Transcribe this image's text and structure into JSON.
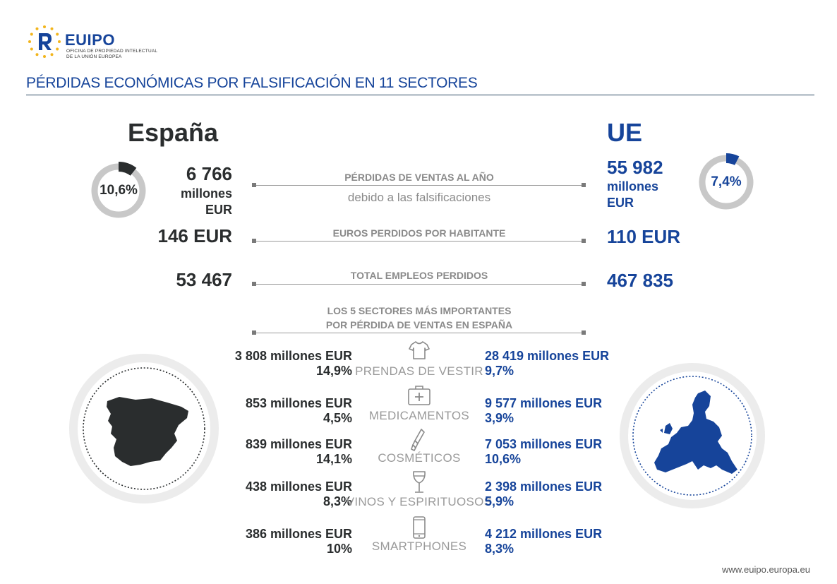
{
  "logo": {
    "name": "EUIPO",
    "subtitle_line1": "OFICINA DE PROPIEDAD INTELECTUAL",
    "subtitle_line2": "DE LA UNIÓN EUROPEA"
  },
  "title": "PÉRDIDAS ECONÓMICAS POR FALSIFICACIÓN EN 11 SECTORES",
  "columns": {
    "left": "España",
    "right": "UE"
  },
  "sales_loss": {
    "label": "PÉRDIDAS DE VENTAS AL AÑO",
    "sublabel": "debido a las falsificaciones",
    "spain": {
      "value": "6 766",
      "unit1": "millones",
      "unit2": "EUR",
      "percent": "10,6%",
      "percent_value": 10.6
    },
    "eu": {
      "value": "55 982",
      "unit1": "millones",
      "unit2": "EUR",
      "percent": "7,4%",
      "percent_value": 7.4
    }
  },
  "per_capita": {
    "label": "EUROS PERDIDOS POR HABITANTE",
    "spain": "146 EUR",
    "eu": "110 EUR"
  },
  "jobs": {
    "label": "TOTAL EMPLEOS PERDIDOS",
    "spain": "53 467",
    "eu": "467 835"
  },
  "sectors_header": {
    "line1": "LOS 5 SECTORES MÁS IMPORTANTES",
    "line2": "POR PÉRDIDA DE VENTAS EN ESPAÑA"
  },
  "sectors": [
    {
      "name": "PRENDAS DE VESTIR",
      "icon": "tshirt-icon",
      "spain_value": "3 808 millones EUR",
      "spain_pct": "14,9%",
      "eu_value": "28 419 millones EUR",
      "eu_pct": "9,7%"
    },
    {
      "name": "MEDICAMENTOS",
      "icon": "medical-kit-icon",
      "spain_value": "853 millones EUR",
      "spain_pct": "4,5%",
      "eu_value": "9 577 millones EUR",
      "eu_pct": "3,9%"
    },
    {
      "name": "COSMÉTICOS",
      "icon": "lipstick-icon",
      "spain_value": "839 millones EUR",
      "spain_pct": "14,1%",
      "eu_value": "7 053 millones EUR",
      "eu_pct": "10,6%"
    },
    {
      "name": "VINOS Y ESPIRITUOSOS",
      "icon": "wine-glass-icon",
      "spain_value": "438 millones EUR",
      "spain_pct": "8,3%",
      "eu_value": "2 398 millones EUR",
      "eu_pct": "5,9%"
    },
    {
      "name": "SMARTPHONES",
      "icon": "smartphone-icon",
      "spain_value": "386 millones EUR",
      "spain_pct": "10%",
      "eu_value": "4 212 millones EUR",
      "eu_pct": "8,3%"
    }
  ],
  "footer": {
    "url": "www.euipo.europa.eu"
  },
  "colors": {
    "spain": "#2a2d2e",
    "eu": "#16449a",
    "ring": "#c8c8c8",
    "label": "#8a8a8a"
  }
}
